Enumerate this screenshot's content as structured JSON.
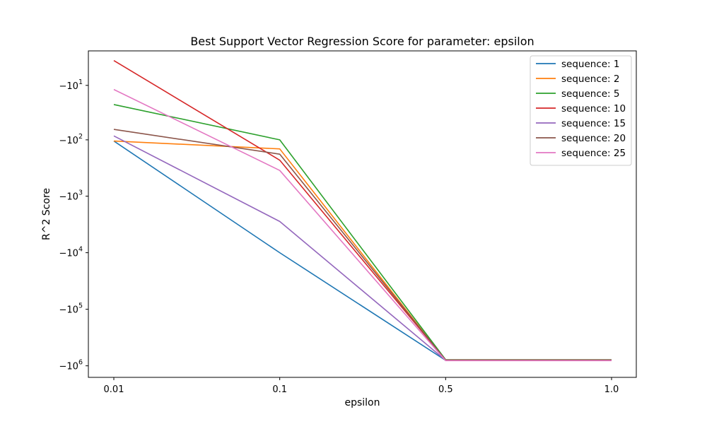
{
  "chart_data": {
    "type": "line",
    "title": "Best Support Vector Regression Score for parameter: epsilon",
    "xlabel": "epsilon",
    "ylabel": "R^2 Score",
    "categories": [
      "0.01",
      "0.1",
      "0.5",
      "1.0"
    ],
    "y_scale": "symlog (negative values)",
    "y_ticks": [
      {
        "value": -10,
        "base": "−10",
        "exp": "1"
      },
      {
        "value": -100,
        "base": "−10",
        "exp": "2"
      },
      {
        "value": -1000,
        "base": "−10",
        "exp": "3"
      },
      {
        "value": -10000,
        "base": "−10",
        "exp": "4"
      },
      {
        "value": -100000,
        "base": "−10",
        "exp": "5"
      },
      {
        "value": -1000000,
        "base": "−10",
        "exp": "6"
      }
    ],
    "ylim": [
      -1600000,
      -1.7
    ],
    "grid": false,
    "legend_position": "top-right",
    "series": [
      {
        "name": "sequence: 1",
        "color": "#1f77b4",
        "values": [
          -105,
          -10000,
          -800000,
          -800000
        ]
      },
      {
        "name": "sequence: 2",
        "color": "#ff7f0e",
        "values": [
          -105,
          -145,
          -800000,
          -800000
        ]
      },
      {
        "name": "sequence: 5",
        "color": "#2ca02c",
        "values": [
          -23,
          -100,
          -780000,
          -780000
        ]
      },
      {
        "name": "sequence: 10",
        "color": "#d62728",
        "values": [
          -3,
          -230,
          -790000,
          -790000
        ]
      },
      {
        "name": "sequence: 15",
        "color": "#9467bd",
        "values": [
          -85,
          -2800,
          -800000,
          -800000
        ]
      },
      {
        "name": "sequence: 20",
        "color": "#8c564b",
        "values": [
          -65,
          -180,
          -790000,
          -790000
        ]
      },
      {
        "name": "sequence: 25",
        "color": "#e377c2",
        "values": [
          -12,
          -350,
          -810000,
          -810000
        ]
      }
    ]
  }
}
